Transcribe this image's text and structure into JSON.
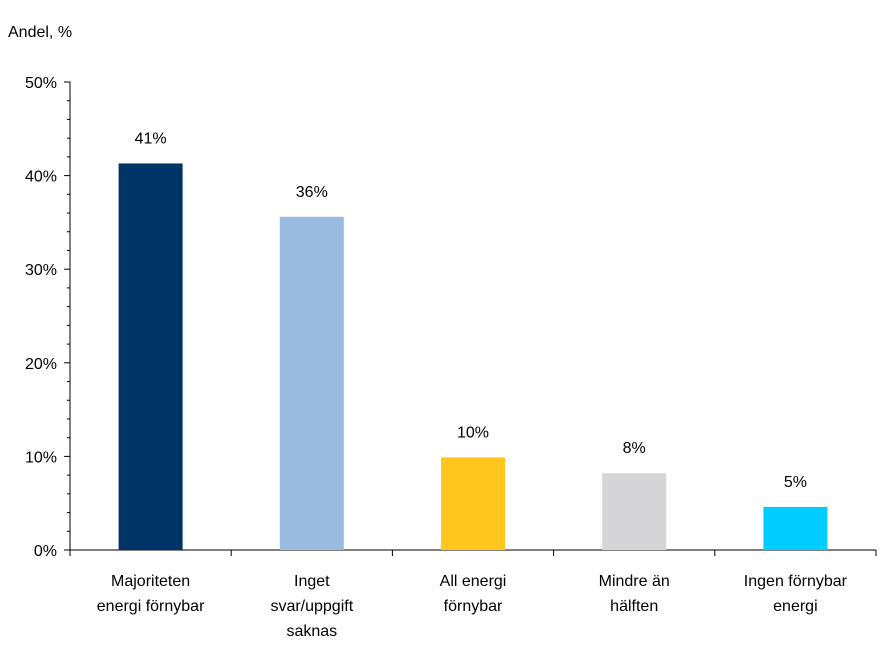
{
  "chart_data": {
    "type": "bar",
    "title": "",
    "xlabel": "",
    "ylabel": "Andel, %",
    "ylim": [
      0,
      50
    ],
    "yticks": [
      "0%",
      "10%",
      "20%",
      "30%",
      "40%",
      "50%"
    ],
    "ytick_values": [
      0,
      10,
      20,
      30,
      40,
      50
    ],
    "grid": false,
    "legend": "none",
    "categories": [
      [
        "Majoriteten",
        "energi förnybar"
      ],
      [
        "Inget",
        "svar/uppgift",
        "saknas"
      ],
      [
        "All energi",
        "förnybar"
      ],
      [
        "Mindre än",
        "hälften"
      ],
      [
        "Ingen förnybar",
        "energi"
      ]
    ],
    "values": [
      41.3,
      35.6,
      9.9,
      8.2,
      4.6
    ],
    "value_labels": [
      "41%",
      "36%",
      "10%",
      "8%",
      "5%"
    ],
    "colors": [
      "#003366",
      "#99BBE0",
      "#FFC620",
      "#D5D4D6",
      "#00CCFF"
    ],
    "axis_color": "#000000"
  }
}
